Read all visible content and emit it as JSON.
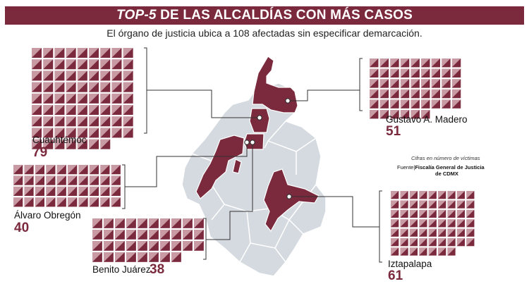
{
  "title": {
    "prefix": "TOP-5",
    "rest": "DE LAS ALCALDÍAS CON MÁS CASOS"
  },
  "subtitle": "El órgano de justicia ubica a 108 afectadas sin especificar demarcación.",
  "note": "Cifras en número de víctimas",
  "source_label": "Fuente|",
  "source_line1": "Fiscalía General de Justicia",
  "source_line2": "de CDMX",
  "colors": {
    "accent": "#7b2a3d",
    "map_gray": "#d4dadf",
    "square_light": "#c79aa4",
    "square_dark": "#7b2a3d",
    "line": "#333333"
  },
  "chart_data": {
    "type": "pictogram",
    "unit": "víctimas",
    "categories": [
      "Cuauhtémoc",
      "Gustavo A. Madero",
      "Álvaro Obregón",
      "Benito Juárez",
      "Iztapalapa"
    ],
    "values": [
      79,
      51,
      40,
      38,
      61
    ],
    "series": [
      {
        "name": "Cuauhtémoc",
        "value": 79,
        "value_label": "79"
      },
      {
        "name": "Gustavo A. Madero",
        "value": 51,
        "value_label": "51"
      },
      {
        "name": "Álvaro Obregón",
        "value": 40,
        "value_label": "40"
      },
      {
        "name": "Benito Juárez",
        "value": 38,
        "value_label": "38"
      },
      {
        "name": "Iztapalapa",
        "value": 61,
        "value_label": "61"
      }
    ]
  }
}
